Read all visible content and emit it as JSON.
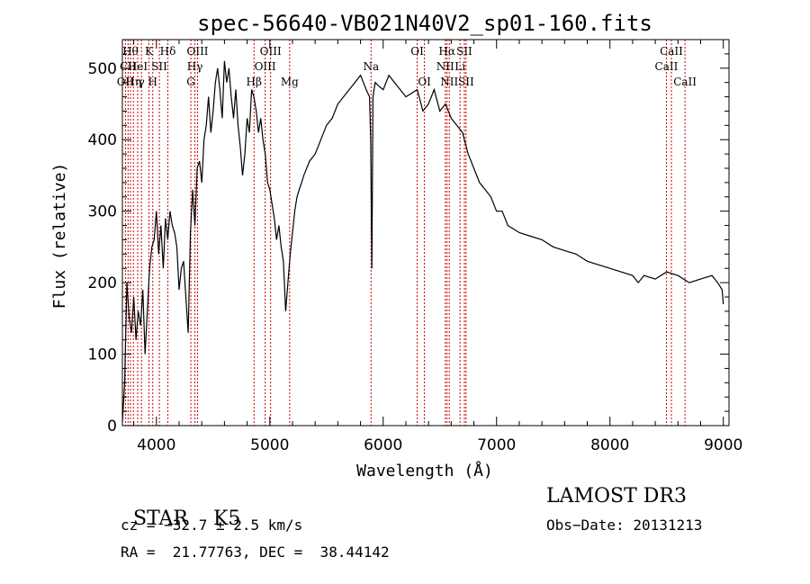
{
  "chart_data": {
    "type": "line",
    "title": "spec-56640-VB021N40V2_sp01-160.fits",
    "xlabel": "Wavelength (Å)",
    "ylabel": "Flux (relative)",
    "xlim": [
      3700,
      9050
    ],
    "ylim": [
      0,
      540
    ],
    "xticks": [
      4000,
      5000,
      6000,
      7000,
      8000,
      9000
    ],
    "xtick_labels": [
      "4000",
      "5000",
      "6000",
      "7000",
      "8000",
      "9000"
    ],
    "yticks": [
      0,
      100,
      200,
      300,
      400,
      500
    ],
    "ytick_labels": [
      "0",
      "100",
      "200",
      "300",
      "400",
      "500"
    ],
    "grid": false,
    "series": [
      {
        "x": [
          3700,
          3720,
          3740,
          3760,
          3780,
          3800,
          3820,
          3840,
          3860,
          3880,
          3900,
          3920,
          3940,
          3960,
          3980,
          4000,
          4020,
          4040,
          4060,
          4080,
          4100,
          4120,
          4140,
          4160,
          4180,
          4200,
          4220,
          4240,
          4260,
          4280,
          4300,
          4320,
          4340,
          4360,
          4380,
          4400,
          4420,
          4440,
          4460,
          4480,
          4500,
          4520,
          4540,
          4560,
          4580,
          4600,
          4620,
          4640,
          4660,
          4680,
          4700,
          4720,
          4740,
          4760,
          4780,
          4800,
          4820,
          4840,
          4860,
          4880,
          4900,
          4920,
          4940,
          4960,
          4980,
          5000,
          5020,
          5040,
          5060,
          5080,
          5100,
          5120,
          5140,
          5160,
          5180,
          5200,
          5220,
          5240,
          5260,
          5280,
          5300,
          5350,
          5400,
          5450,
          5500,
          5550,
          5600,
          5650,
          5700,
          5750,
          5800,
          5850,
          5880,
          5890,
          5900,
          5910,
          5930,
          5960,
          6000,
          6050,
          6100,
          6150,
          6200,
          6250,
          6300,
          6350,
          6400,
          6450,
          6500,
          6550,
          6600,
          6650,
          6700,
          6750,
          6800,
          6850,
          6900,
          6950,
          7000,
          7050,
          7100,
          7150,
          7200,
          7300,
          7400,
          7500,
          7600,
          7700,
          7800,
          7900,
          8000,
          8100,
          8200,
          8250,
          8300,
          8400,
          8500,
          8600,
          8700,
          8800,
          8900,
          8950,
          8990,
          9000
        ],
        "y": [
          5,
          60,
          200,
          150,
          130,
          180,
          120,
          160,
          140,
          190,
          100,
          160,
          220,
          250,
          260,
          300,
          240,
          280,
          220,
          290,
          260,
          300,
          280,
          270,
          250,
          190,
          220,
          230,
          180,
          130,
          270,
          330,
          280,
          360,
          370,
          340,
          400,
          420,
          460,
          410,
          440,
          480,
          500,
          470,
          430,
          510,
          480,
          500,
          460,
          430,
          470,
          420,
          390,
          350,
          380,
          430,
          410,
          470,
          460,
          440,
          410,
          430,
          400,
          380,
          340,
          330,
          310,
          290,
          260,
          280,
          250,
          230,
          160,
          200,
          240,
          270,
          300,
          320,
          330,
          340,
          350,
          370,
          380,
          400,
          420,
          430,
          450,
          460,
          470,
          480,
          490,
          470,
          460,
          400,
          220,
          460,
          480,
          475,
          470,
          490,
          480,
          470,
          460,
          465,
          470,
          440,
          450,
          470,
          440,
          450,
          430,
          420,
          410,
          380,
          360,
          340,
          330,
          320,
          300,
          300,
          280,
          275,
          270,
          265,
          260,
          250,
          245,
          240,
          230,
          225,
          220,
          215,
          210,
          200,
          210,
          205,
          215,
          210,
          200,
          205,
          210,
          200,
          190,
          170
        ]
      }
    ],
    "line_markers": [
      {
        "x": 3727,
        "label": "OII",
        "row": 3
      },
      {
        "x": 3750,
        "label": "CII",
        "row": 2
      },
      {
        "x": 3771,
        "label": "Hθ",
        "row": 1
      },
      {
        "x": 3797,
        "label": "Hη",
        "row": 3
      },
      {
        "x": 3835,
        "label": "HeI",
        "row": 2
      },
      {
        "x": 3868,
        "label": "γ",
        "row": 3
      },
      {
        "x": 3934,
        "label": "K",
        "row": 1
      },
      {
        "x": 3968,
        "label": "H",
        "row": 3
      },
      {
        "x": 4026,
        "label": "SII",
        "row": 2
      },
      {
        "x": 4101,
        "label": "Hδ",
        "row": 1
      },
      {
        "x": 4304,
        "label": "G",
        "row": 3
      },
      {
        "x": 4340,
        "label": "Hγ",
        "row": 2
      },
      {
        "x": 4363,
        "label": "OIII",
        "row": 1
      },
      {
        "x": 4861,
        "label": "Hβ",
        "row": 3
      },
      {
        "x": 4959,
        "label": "OIII",
        "row": 2
      },
      {
        "x": 5007,
        "label": "OIII",
        "row": 1
      },
      {
        "x": 5175,
        "label": "Mg",
        "row": 3
      },
      {
        "x": 5893,
        "label": "Na",
        "row": 2
      },
      {
        "x": 6300,
        "label": "OI",
        "row": 1
      },
      {
        "x": 6364,
        "label": "OI",
        "row": 3
      },
      {
        "x": 6548,
        "label": "NII",
        "row": 2
      },
      {
        "x": 6563,
        "label": "Hα",
        "row": 1
      },
      {
        "x": 6583,
        "label": "NII",
        "row": 3
      },
      {
        "x": 6678,
        "label": "Li",
        "row": 2
      },
      {
        "x": 6716,
        "label": "SII",
        "row": 1
      },
      {
        "x": 6731,
        "label": "SII",
        "row": 3
      },
      {
        "x": 8498,
        "label": "CaII",
        "row": 2
      },
      {
        "x": 8542,
        "label": "CaII",
        "row": 1
      },
      {
        "x": 8662,
        "label": "CaII",
        "row": 3
      }
    ]
  },
  "info": {
    "class_label": "STAR",
    "subclass": "K5",
    "survey": "LAMOST DR3",
    "redshift": "cz = −32.7 ± 2.5 km/s",
    "obs_date": "Obs−Date: 20131213",
    "coords": "RA =  21.77763, DEC =  38.44142"
  },
  "colors": {
    "spectrum": "#000000",
    "markers": "#cc0000",
    "background": "#ffffff"
  }
}
